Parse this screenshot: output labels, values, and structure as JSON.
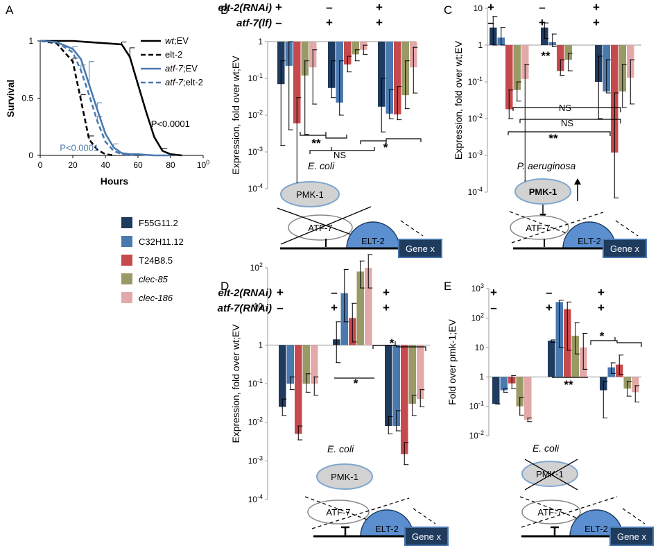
{
  "colors": {
    "F55G11.2": "#1f3b5e",
    "C32H11.12": "#4a79b0",
    "T24B8.5": "#c64a4d",
    "clec-85": "#9a9a66",
    "clec-186": "#e3a9a9",
    "survival_blue": "#4a79b0",
    "ellipse_gray": "#d2d2d2",
    "elt_blue": "#5b8fd0",
    "gene_box": "#1f3b5e"
  },
  "legend": [
    {
      "label": "F55G11.2",
      "italic": false
    },
    {
      "label": "C32H11.12",
      "italic": false
    },
    {
      "label": "T24B8.5",
      "italic": false
    },
    {
      "label": "clec-85",
      "italic": true
    },
    {
      "label": "clec-186",
      "italic": true
    }
  ],
  "chart_data": [
    {
      "panel": "A",
      "type": "line",
      "xlabel": "Hours",
      "ylabel": "Survival",
      "xlim": [
        0,
        100
      ],
      "ylim": [
        0,
        1
      ],
      "xticks": [
        "0",
        "20",
        "40",
        "60",
        "80",
        "100"
      ],
      "yticks": [
        "0",
        "0.5",
        "1"
      ],
      "legend_position": "top-right",
      "series": [
        {
          "name": "wt;EV",
          "name_italic": "wt",
          "name_rest": ";EV",
          "color": "#000000",
          "dashed": false,
          "x": [
            0,
            10,
            20,
            30,
            40,
            50,
            55,
            60,
            65,
            70,
            75,
            80,
            87
          ],
          "y": [
            1,
            1,
            1,
            0.99,
            0.98,
            0.97,
            0.86,
            0.62,
            0.38,
            0.16,
            0.04,
            0.01,
            0
          ],
          "err": [
            0,
            0,
            0,
            0,
            0,
            0.02,
            0.08,
            0,
            0,
            0,
            0.02,
            0,
            0
          ]
        },
        {
          "name": "elt-2",
          "name_italic": "",
          "name_rest": "elt-2",
          "color": "#000000",
          "dashed": true,
          "x": [
            0,
            10,
            20,
            25,
            30,
            35,
            40,
            45
          ],
          "y": [
            1,
            0.98,
            0.82,
            0.48,
            0.14,
            0.05,
            0.01,
            0
          ],
          "err": [
            0,
            0,
            0.03,
            0.05,
            0.03,
            0,
            0,
            0
          ]
        },
        {
          "name": "atf-7;EV",
          "name_italic": "atf-7",
          "name_rest": ";EV",
          "color": "#4a79b0",
          "dashed": false,
          "x": [
            0,
            10,
            20,
            25,
            30,
            35,
            40,
            45,
            50,
            55,
            60,
            70,
            80
          ],
          "y": [
            1,
            0.99,
            0.93,
            0.84,
            0.62,
            0.4,
            0.19,
            0.07,
            0.02,
            0.01,
            0.01,
            0,
            0
          ],
          "err": [
            0,
            0,
            0.02,
            0,
            0.2,
            0.06,
            0,
            0.03,
            0,
            0,
            0,
            0,
            0
          ]
        },
        {
          "name": "atf-7;elt-2",
          "name_italic": "atf-7",
          "name_rest": ";elt-2",
          "color": "#4a79b0",
          "dashed": true,
          "x": [
            0,
            10,
            20,
            25,
            30,
            35,
            40,
            45,
            50,
            60
          ],
          "y": [
            1,
            0.99,
            0.9,
            0.74,
            0.53,
            0.3,
            0.12,
            0.04,
            0.01,
            0
          ],
          "err": [
            0,
            0,
            0,
            0.05,
            0,
            0.04,
            0,
            0,
            0,
            0
          ]
        }
      ],
      "annotations": [
        {
          "text": "P<0.0001",
          "color": "#000000",
          "x": 68,
          "y": 0.25
        },
        {
          "text": "P<0.0001",
          "color": "#4a79b0",
          "x": 12,
          "y": 0.04
        }
      ]
    },
    {
      "panel": "B",
      "type": "bar",
      "log_scale": true,
      "ylabel": "Expression, fold over wt;EV",
      "ylim_exp": [
        -4,
        0
      ],
      "yticks": [
        "1",
        "10-1",
        "10-2",
        "10-3",
        "10-4"
      ],
      "rows": [
        {
          "label": "elt-2(RNAi)",
          "signs": [
            "+",
            "–",
            "+"
          ]
        },
        {
          "label": "atf-7(lf)",
          "signs": [
            "–",
            "+",
            "+"
          ]
        }
      ],
      "groups": [
        {
          "values": [
            0.07,
            0.22,
            0.006,
            0.12,
            0.2
          ],
          "err_low": [
            0.0015,
            0.004,
            0.00015,
            0.003,
            0.02
          ],
          "err_high": [
            0.3,
            1,
            0.03,
            0.3,
            0.6
          ]
        },
        {
          "values": [
            0.055,
            0.022,
            0.24,
            0.45,
            0.6
          ],
          "err_low": [
            0.03,
            0.01,
            0.15,
            0.3,
            0.45
          ],
          "err_high": [
            0.3,
            0.3,
            0.4,
            0.6,
            0.8
          ]
        },
        {
          "values": [
            0.017,
            0.011,
            0.0105,
            0.035,
            0.2
          ],
          "err_low": [
            0.0035,
            0.008,
            0.0075,
            0.015,
            0.04
          ],
          "err_high": [
            0.1,
            0.05,
            0.06,
            0.3,
            0.7
          ]
        }
      ],
      "significance": [
        {
          "label": "**",
          "kind": "sig"
        },
        {
          "label": "*",
          "kind": "sig"
        },
        {
          "label": "NS",
          "kind": "ns"
        }
      ],
      "condition_note": "E. coli"
    },
    {
      "panel": "C",
      "type": "bar",
      "log_scale": true,
      "ylabel": "Expression, fold over wt;EV",
      "ylim_exp": [
        -4,
        1
      ],
      "yticks": [
        "10",
        "1",
        "10-1",
        "10-2",
        "10-3",
        "10-4"
      ],
      "rows": [
        {
          "label": "",
          "signs": [
            "+",
            "–",
            "+"
          ]
        },
        {
          "label": "",
          "signs": [
            "–",
            "+",
            "+"
          ]
        }
      ],
      "groups": [
        {
          "values": [
            3,
            1.6,
            0.018,
            0.06,
            0.12
          ],
          "err_low": [
            1,
            1,
            0.01,
            0.03,
            0.0002
          ],
          "err_high": [
            6,
            3,
            0.06,
            0.1,
            0.3
          ]
        },
        {
          "values": [
            3,
            1.2,
            0.2,
            0.4,
            0
          ],
          "err_low": [
            1.5,
            0.9,
            0.15,
            0.2,
            0
          ],
          "err_high": [
            4,
            2,
            0.4,
            0.6,
            0
          ]
        },
        {
          "values": [
            0.1,
            0.055,
            0.0012,
            0.055,
            0.13
          ],
          "err_low": [
            0.01,
            0.05,
            7e-05,
            0.02,
            0.025
          ],
          "err_high": [
            0.5,
            0.4,
            0.05,
            0.3,
            0.4
          ]
        }
      ],
      "significance": [
        {
          "label": "**",
          "kind": "sig"
        },
        {
          "label": "NS",
          "kind": "ns"
        },
        {
          "label": "NS",
          "kind": "ns"
        },
        {
          "label": "**",
          "kind": "sig"
        }
      ],
      "condition_note": "P. aeruginosa"
    },
    {
      "panel": "D",
      "type": "bar",
      "log_scale": true,
      "ylabel": "Expression,  fold over wt;EV",
      "ylim_exp": [
        -4,
        2
      ],
      "yticks": [
        "102",
        "10",
        "1",
        "10-1",
        "10-2",
        "10-3",
        "10-4"
      ],
      "rows": [
        {
          "label": "elt-2(RNAi)",
          "signs": [
            "+",
            "–",
            "+"
          ]
        },
        {
          "label": "atf-7(RNAi)",
          "signs": [
            "–",
            "+",
            "+"
          ]
        }
      ],
      "groups": [
        {
          "values": [
            0.025,
            0.1,
            0.005,
            0.1,
            0.1
          ],
          "err_low": [
            0.015,
            0.07,
            0.0035,
            0.06,
            0.05
          ],
          "err_high": [
            0.04,
            0.15,
            0.008,
            0.18,
            0.15
          ]
        },
        {
          "values": [
            1.4,
            22,
            5,
            80,
            100
          ],
          "err_low": [
            0.35,
            4,
            1.2,
            30,
            30
          ],
          "err_high": [
            4,
            90,
            12,
            150,
            220
          ]
        },
        {
          "values": [
            0.008,
            0.008,
            0.0015,
            0.03,
            0.04
          ],
          "err_low": [
            0.005,
            0.006,
            0.0008,
            0.015,
            0.025
          ],
          "err_high": [
            0.014,
            0.02,
            0.003,
            0.05,
            0.07
          ]
        }
      ],
      "significance": [
        {
          "label": "*",
          "kind": "sig"
        },
        {
          "label": "*",
          "kind": "sig"
        }
      ],
      "condition_note": "E. coli"
    },
    {
      "panel": "E",
      "type": "bar",
      "log_scale": true,
      "ylabel": "Fold over pmk-1;EV",
      "ylim_exp": [
        -2,
        3
      ],
      "yticks": [
        "103",
        "102",
        "10",
        "1",
        "10-1",
        "10-2"
      ],
      "rows": [
        {
          "label": "",
          "signs": [
            "+",
            "–",
            "+"
          ]
        },
        {
          "label": "",
          "signs": [
            "–",
            "+",
            "+"
          ]
        }
      ],
      "groups": [
        {
          "values": [
            0.12,
            0.35,
            0.6,
            0.1,
            0.035
          ],
          "err_low": [
            0.12,
            0.3,
            0.4,
            0.05,
            0.03
          ],
          "err_high": [
            0.12,
            0.4,
            1.1,
            0.2,
            0.04
          ]
        },
        {
          "values": [
            17,
            350,
            200,
            25,
            10
          ],
          "err_low": [
            15,
            10,
            8,
            6,
            1.8
          ],
          "err_high": [
            18,
            400,
            350,
            70,
            30
          ]
        },
        {
          "values": [
            0.35,
            2.1,
            2.6,
            0.4,
            0.3
          ],
          "err_low": [
            0.04,
            1.3,
            1.2,
            0.22,
            0.14
          ],
          "err_high": [
            0.7,
            3,
            5.5,
            0.7,
            0.5
          ]
        }
      ],
      "significance": [
        {
          "label": "**",
          "kind": "sig"
        },
        {
          "label": "*",
          "kind": "sig"
        }
      ],
      "condition_note": "E. coli"
    }
  ],
  "diagrams": {
    "pmk": "PMK-1",
    "atf": "ATF-7",
    "elt": "ELT-2",
    "gene": "Gene x"
  }
}
